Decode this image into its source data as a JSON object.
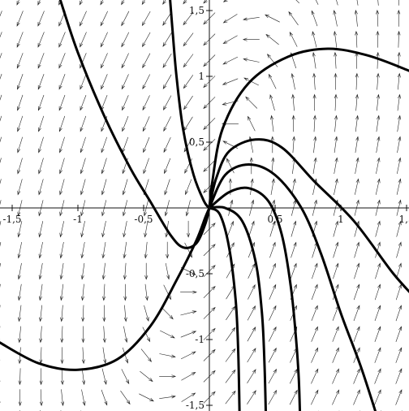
{
  "chart_data": {
    "type": "direction-field",
    "title": "",
    "xlabel": "",
    "ylabel": "",
    "xlim": [
      -1.6,
      1.6
    ],
    "ylim": [
      -1.6,
      1.6
    ],
    "grid": false,
    "x_ticks": [
      {
        "value": -1.5,
        "label": "-1,5"
      },
      {
        "value": -1.0,
        "label": "-1"
      },
      {
        "value": -0.5,
        "label": "-0,5"
      },
      {
        "value": 0.5,
        "label": "0,5"
      },
      {
        "value": 1.0,
        "label": "1"
      },
      {
        "value": 1.5,
        "label": "1,5"
      }
    ],
    "y_ticks": [
      {
        "value": 1.5,
        "label": "1,5"
      },
      {
        "value": 1.0,
        "label": "1"
      },
      {
        "value": 0.5,
        "label": "0,5"
      },
      {
        "value": -0.5,
        "label": "-0,5"
      },
      {
        "value": -1.0,
        "label": "-1"
      },
      {
        "value": -1.5,
        "label": "-1,5"
      }
    ],
    "field": {
      "grid_step": 0.16,
      "dx": [
        1,
        -1
      ],
      "dy": [
        4,
        -1
      ]
    },
    "trajectories": [
      [
        [
          -1.14,
          1.6
        ],
        [
          -1.0,
          1.18
        ],
        [
          -0.8,
          0.7
        ],
        [
          -0.6,
          0.3
        ],
        [
          -0.45,
          0.05
        ],
        [
          -0.3,
          -0.2
        ],
        [
          -0.2,
          -0.3
        ],
        [
          -0.1,
          -0.27
        ],
        [
          -0.03,
          -0.12
        ],
        [
          0.0,
          0.0
        ]
      ],
      [
        [
          -0.3,
          1.6
        ],
        [
          -0.28,
          1.35
        ],
        [
          -0.25,
          1.0
        ],
        [
          -0.2,
          0.6
        ],
        [
          -0.12,
          0.25
        ],
        [
          -0.04,
          0.05
        ],
        [
          0.0,
          0.0
        ]
      ],
      [
        [
          -1.6,
          -1.02
        ],
        [
          -1.3,
          -1.18
        ],
        [
          -1.0,
          -1.23
        ],
        [
          -0.7,
          -1.15
        ],
        [
          -0.45,
          -0.9
        ],
        [
          -0.25,
          -0.55
        ],
        [
          -0.1,
          -0.25
        ],
        [
          -0.03,
          -0.07
        ],
        [
          0.0,
          0.0
        ]
      ],
      [
        [
          0.0,
          0.0
        ],
        [
          0.02,
          0.18
        ],
        [
          0.1,
          0.6
        ],
        [
          0.3,
          0.95
        ],
        [
          0.6,
          1.15
        ],
        [
          0.9,
          1.21
        ],
        [
          1.2,
          1.16
        ],
        [
          1.5,
          1.05
        ],
        [
          1.6,
          1.0
        ]
      ],
      [
        [
          0.0,
          0.0
        ],
        [
          0.05,
          0.22
        ],
        [
          0.15,
          0.43
        ],
        [
          0.35,
          0.52
        ],
        [
          0.55,
          0.46
        ],
        [
          0.8,
          0.2
        ],
        [
          1.1,
          -0.1
        ],
        [
          1.4,
          -0.5
        ],
        [
          1.6,
          -0.72
        ]
      ],
      [
        [
          0.0,
          0.0
        ],
        [
          0.12,
          0.25
        ],
        [
          0.3,
          0.33
        ],
        [
          0.5,
          0.25
        ],
        [
          0.7,
          0.0
        ],
        [
          0.85,
          -0.35
        ],
        [
          1.0,
          -0.8
        ],
        [
          1.15,
          -1.2
        ],
        [
          1.28,
          -1.6
        ]
      ],
      [
        [
          0.0,
          0.0
        ],
        [
          0.15,
          0.12
        ],
        [
          0.3,
          0.15
        ],
        [
          0.45,
          0.05
        ],
        [
          0.55,
          -0.2
        ],
        [
          0.62,
          -0.6
        ],
        [
          0.66,
          -1.0
        ],
        [
          0.68,
          -1.3
        ],
        [
          0.69,
          -1.6
        ]
      ],
      [
        [
          0.0,
          0.0
        ],
        [
          0.12,
          0.0
        ],
        [
          0.25,
          -0.1
        ],
        [
          0.35,
          -0.4
        ],
        [
          0.4,
          -0.8
        ],
        [
          0.42,
          -1.2
        ],
        [
          0.43,
          -1.6
        ]
      ],
      [
        [
          0.0,
          0.0
        ],
        [
          0.08,
          -0.05
        ],
        [
          0.15,
          -0.3
        ],
        [
          0.2,
          -0.7
        ],
        [
          0.22,
          -1.1
        ],
        [
          0.23,
          -1.6
        ]
      ]
    ]
  }
}
